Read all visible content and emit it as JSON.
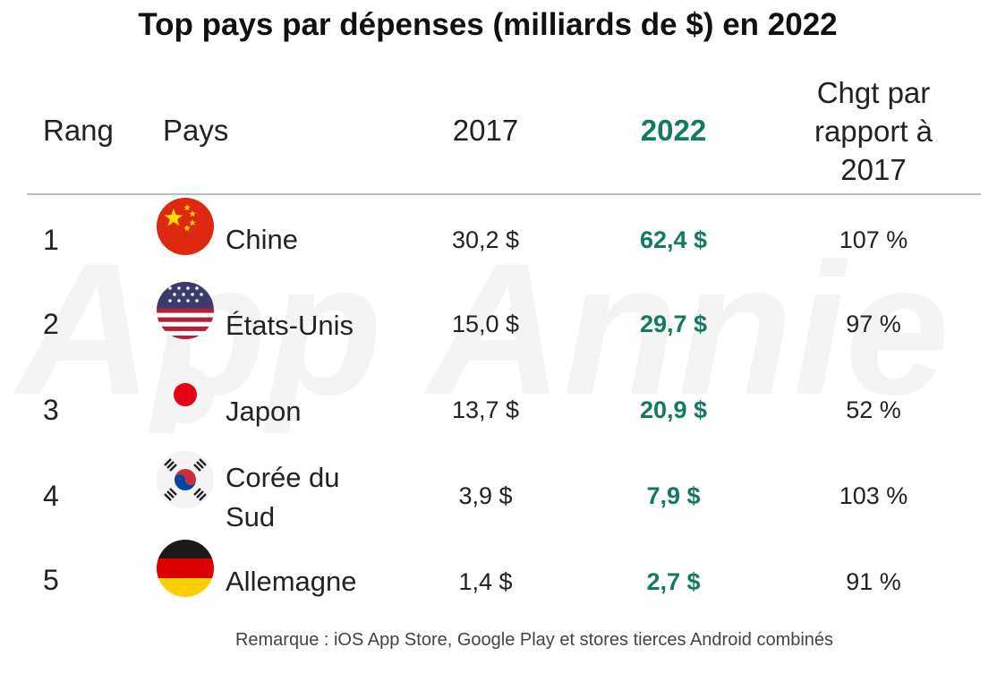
{
  "title": "Top pays par dépenses (milliards de $) en 2022",
  "colors": {
    "accent": "#137a62",
    "text": "#222222",
    "divider": "#bdbdbd"
  },
  "watermark": "App Annie",
  "headers": {
    "rank": "Rang",
    "country": "Pays",
    "year_2017": "2017",
    "year_2022": "2022",
    "change_line1": "Chgt par",
    "change_line2": "rapport à",
    "change_line3": "2017"
  },
  "footnote": "Remarque : iOS App Store, Google Play et stores tierces Android combinés",
  "chart_data": {
    "type": "table",
    "title": "Top pays par dépenses (milliards de $) en 2022",
    "columns": [
      "Rang",
      "Pays",
      "2017",
      "2022",
      "Chgt par rapport à 2017"
    ],
    "rows": [
      {
        "rank": "1",
        "country": "Chine",
        "flag_icon": "china-flag-icon",
        "v2017": "30,2 $",
        "v2022": "62,4 $",
        "change": "107 %",
        "value_2017": 30.2,
        "value_2022": 62.4,
        "change_pct": 107
      },
      {
        "rank": "2",
        "country": "États-Unis",
        "flag_icon": "usa-flag-icon",
        "v2017": "15,0 $",
        "v2022": "29,7 $",
        "change": "97 %",
        "value_2017": 15.0,
        "value_2022": 29.7,
        "change_pct": 97
      },
      {
        "rank": "3",
        "country": "Japon",
        "flag_icon": "japan-flag-icon",
        "v2017": "13,7 $",
        "v2022": "20,9 $",
        "change": "52 %",
        "value_2017": 13.7,
        "value_2022": 20.9,
        "change_pct": 52
      },
      {
        "rank": "4",
        "country_line1": "Corée du",
        "country_line2": "Sud",
        "flag_icon": "south-korea-flag-icon",
        "v2017": "3,9 $",
        "v2022": "7,9 $",
        "change": "103 %",
        "value_2017": 3.9,
        "value_2022": 7.9,
        "change_pct": 103
      },
      {
        "rank": "5",
        "country": "Allemagne",
        "flag_icon": "germany-flag-icon",
        "v2017": "1,4 $",
        "v2022": "2,7 $",
        "change": "91 %",
        "value_2017": 1.4,
        "value_2022": 2.7,
        "change_pct": 91
      }
    ]
  }
}
